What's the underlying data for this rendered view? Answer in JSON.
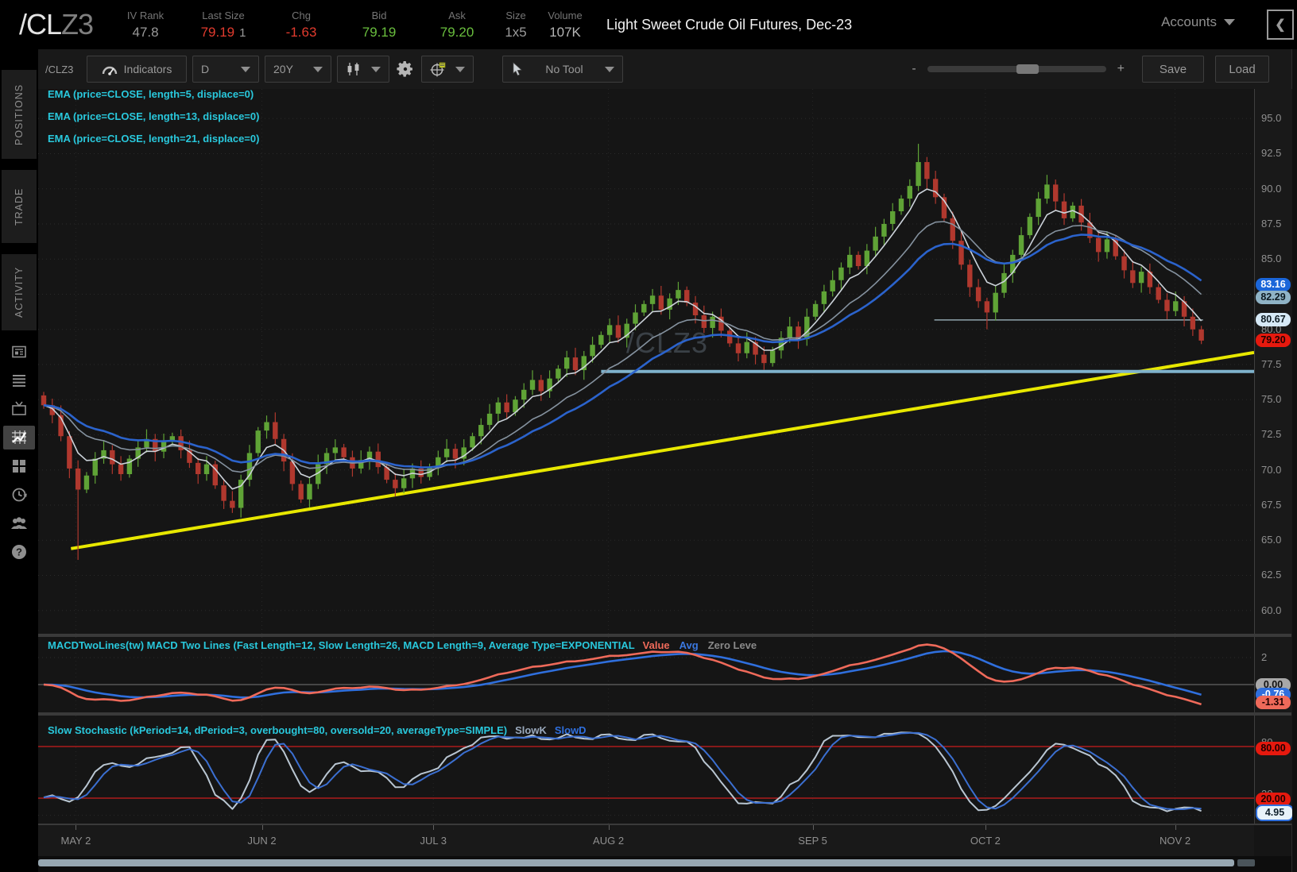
{
  "header": {
    "symbol": "/CL",
    "symbol_suffix": "Z3",
    "iv_rank": {
      "label": "IV Rank",
      "value": "47.8"
    },
    "last": {
      "label": "Last Size",
      "value": "79.19",
      "size": "1"
    },
    "chg": {
      "label": "Chg",
      "value": "-1.63"
    },
    "bid": {
      "label": "Bid",
      "value": "79.19"
    },
    "ask": {
      "label": "Ask",
      "value": "79.20"
    },
    "size": {
      "label": "Size",
      "value": "1x5"
    },
    "volume": {
      "label": "Volume",
      "value": "107K"
    },
    "title": "Light Sweet Crude Oil Futures, Dec-23",
    "accounts_label": "Accounts",
    "collapse_icon": "❮",
    "colors": {
      "up": "#6abf3e",
      "down": "#e23b2e"
    }
  },
  "sidebar": {
    "tabs": [
      "POSITIONS",
      "TRADE",
      "ACTIVITY"
    ],
    "icons": [
      "news-icon",
      "list-icon",
      "tv-icon",
      "charts-icon",
      "grid-icon",
      "history-icon",
      "community-icon",
      "help-icon"
    ],
    "active_icon": "charts-icon"
  },
  "toolbar": {
    "symbol_input": "/CLZ3",
    "indicators": "Indicators",
    "timeframe": "D",
    "range": "20Y",
    "tool": "No Tool",
    "zoom_minus": "-",
    "zoom_plus": "+",
    "save": "Save",
    "load": "Load"
  },
  "studies": {
    "ema_labels": [
      "EMA (price=CLOSE, length=5, displace=0)",
      "EMA (price=CLOSE, length=13, displace=0)",
      "EMA (price=CLOSE, length=21, displace=0)"
    ],
    "macd_label": "MACDTwoLines(tw) MACD Two Lines (Fast Length=12, Slow Length=26, MACD Length=9, Average Type=EXPONENTIAL",
    "macd_value": "Value",
    "macd_avg": "Avg",
    "macd_zero": "Zero Leve",
    "stoch_label": "Slow Stochastic (kPeriod=14, dPeriod=3, overbought=80, oversold=20, averageType=SIMPLE)",
    "slowk": "SlowK",
    "slowd": "SlowD"
  },
  "watermark": "/CLZ3",
  "price_axis": {
    "ticks": [
      "95.0",
      "92.5",
      "90.0",
      "87.5",
      "85.0",
      "82.5",
      "80.0",
      "77.5",
      "75.0",
      "72.5",
      "70.0",
      "67.5",
      "65.0",
      "62.5",
      "60.0"
    ],
    "bubbles": [
      {
        "text": "83.16",
        "price": 83.16,
        "bg": "#1b66d9",
        "fg": "#ffffff"
      },
      {
        "text": "82.29",
        "price": 82.29,
        "bg": "#8fb3c6",
        "fg": "#0d1a21"
      },
      {
        "text": "80.67",
        "price": 80.67,
        "bg": "#d6e9f6",
        "fg": "#0d1a21"
      },
      {
        "text": "79.20",
        "price": 79.2,
        "bg": "#e6190e",
        "fg": "#1f0000"
      }
    ]
  },
  "macd_axis": {
    "tick": "2",
    "bubbles": [
      {
        "text": "0.00",
        "value": 0.0,
        "bg": "#a8a8a8",
        "fg": "#111111"
      },
      {
        "text": "-0.76",
        "value": -0.76,
        "bg": "#2f6fdd",
        "fg": "#ffffff"
      },
      {
        "text": "-1.31",
        "value": -1.31,
        "bg": "#ef6a5a",
        "fg": "#1f0000"
      }
    ]
  },
  "stoch_axis": {
    "ticks": [
      {
        "text": "80",
        "value": 85
      },
      {
        "text": "20",
        "value": 25
      }
    ],
    "bubbles": [
      {
        "text": "80.00",
        "value": 78,
        "bg": "#e6190e",
        "fg": "#1f0000",
        "border": ""
      },
      {
        "text": "20.00",
        "value": 19,
        "bg": "#e6190e",
        "fg": "#1f0000",
        "border": ""
      },
      {
        "text": "4.95",
        "value": 5,
        "bg": "#e8f2fa",
        "fg": "#10202c",
        "border": "#2f6fdd"
      }
    ]
  },
  "chart_data": {
    "type": "candlestick",
    "symbol": "/CLZ3",
    "timeframe": "D",
    "range": "20Y",
    "title": "Light Sweet Crude Oil Futures, Dec-23",
    "ylim": [
      58.3,
      97.1
    ],
    "first_open": 75.3,
    "closes": [
      74.6,
      73.9,
      72.4,
      70.1,
      68.6,
      69.6,
      70.8,
      71.4,
      70.4,
      69.7,
      70.8,
      71.6,
      72.2,
      71.3,
      72.0,
      72.4,
      71.4,
      70.5,
      69.7,
      70.4,
      68.9,
      67.8,
      67.3,
      69.3,
      71.2,
      72.8,
      73.4,
      72.2,
      70.6,
      69.0,
      67.9,
      69.0,
      70.4,
      71.2,
      71.6,
      70.9,
      70.1,
      70.7,
      71.3,
      70.2,
      69.3,
      68.7,
      69.4,
      70.1,
      69.5,
      70.2,
      70.9,
      71.5,
      70.8,
      71.6,
      72.4,
      73.2,
      74.0,
      74.8,
      74.1,
      75.0,
      75.7,
      76.4,
      75.6,
      76.5,
      77.2,
      78.0,
      77.1,
      78.1,
      78.9,
      79.6,
      80.3,
      79.4,
      80.4,
      81.2,
      81.8,
      82.4,
      81.4,
      82.2,
      82.8,
      81.9,
      81.0,
      80.1,
      80.9,
      79.9,
      79.0,
      78.3,
      79.1,
      78.2,
      77.6,
      78.5,
      79.4,
      80.2,
      79.3,
      80.9,
      81.8,
      82.7,
      83.5,
      84.4,
      85.3,
      84.5,
      85.6,
      86.6,
      87.5,
      88.4,
      89.3,
      90.2,
      91.9,
      90.7,
      89.4,
      87.9,
      86.3,
      84.6,
      83.0,
      82.0,
      81.2,
      82.6,
      84.0,
      85.3,
      86.7,
      88.0,
      89.3,
      90.3,
      89.1,
      87.9,
      88.8,
      87.6,
      86.5,
      85.5,
      86.4,
      85.2,
      84.2,
      83.3,
      84.1,
      83.0,
      82.1,
      81.3,
      82.0,
      80.9,
      80.0,
      79.2
    ],
    "wick_overrides": {
      "4": {
        "low": 63.6
      },
      "102": {
        "high": 93.2
      },
      "110": {
        "low": 80.0
      }
    },
    "candle_colors": {
      "up": "#5fa336",
      "down": "#b0382e"
    },
    "emas": [
      {
        "length": 5,
        "color": "#ccd3da",
        "width": 1.6
      },
      {
        "length": 13,
        "color": "#85929f",
        "width": 1.6
      },
      {
        "length": 21,
        "color": "#2b63cc",
        "width": 2.6
      }
    ],
    "overlays": {
      "trendline": {
        "x1f": 0.027,
        "p1": 64.4,
        "x2f": 1.0,
        "p2": 78.35,
        "color": "#e8e800",
        "width": 4
      },
      "support": {
        "x1f": 0.463,
        "x2f": 1.0,
        "p": 77.0,
        "color": "#7fb2cc",
        "width": 4
      },
      "level": {
        "x1f": 0.737,
        "x2f": 0.958,
        "p": 80.67,
        "color": "#90a4ae",
        "width": 1.5
      }
    },
    "macd": {
      "fast": 12,
      "slow": 26,
      "signal": 9,
      "value_color": "#ef6a5a",
      "avg_color": "#2f6fdd",
      "zero_color": "#787878",
      "tick_value": 2
    },
    "stoch": {
      "k": 14,
      "d": 3,
      "overbought": 80,
      "oversold": 20,
      "k_color": "#b9c6d2",
      "d_color": "#3b6fd1",
      "band_color": "#cc1f1f"
    },
    "x_labels": [
      {
        "text": "MAY 2",
        "f": 0.031
      },
      {
        "text": "JUN 2",
        "f": 0.184
      },
      {
        "text": "JUL 3",
        "f": 0.325
      },
      {
        "text": "AUG 2",
        "f": 0.469
      },
      {
        "text": "SEP 5",
        "f": 0.637
      },
      {
        "text": "OCT 2",
        "f": 0.779
      },
      {
        "text": "NOV 2",
        "f": 0.935
      }
    ]
  }
}
